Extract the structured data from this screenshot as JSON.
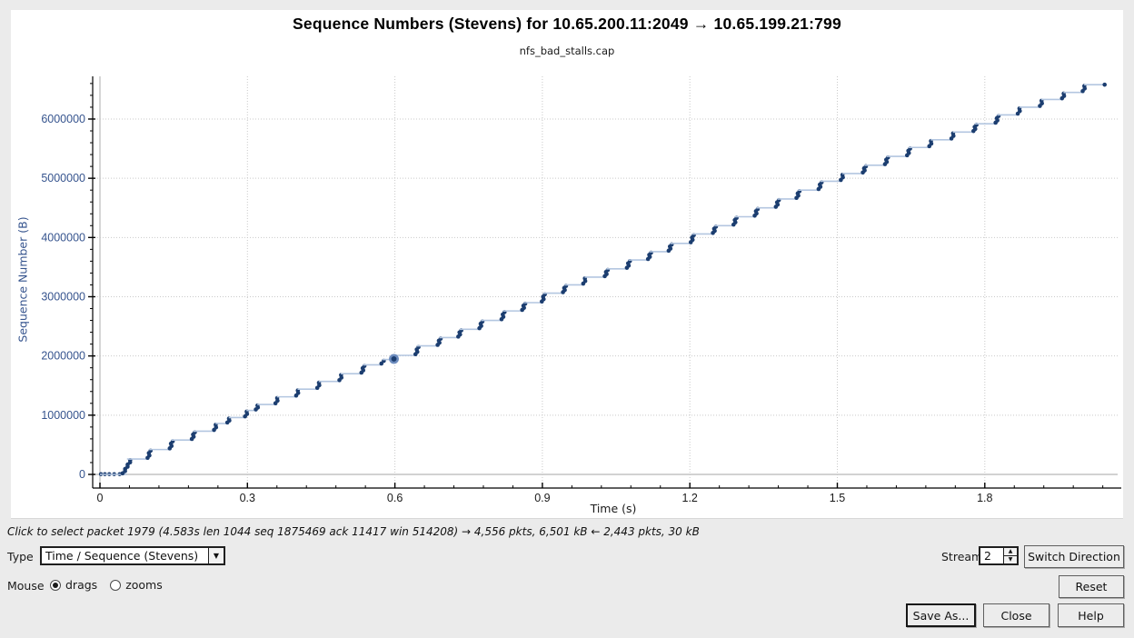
{
  "window": {
    "title": "Sequence Numbers (Stevens) for 10.65.200.11:2049 → 10.65.199.21:799",
    "subtitle": "nfs_bad_stalls.cap"
  },
  "chart_data": {
    "type": "scatter",
    "title": "Sequence Numbers (Stevens) for 10.65.200.11:2049 → 10.65.199.21:799",
    "subtitle": "nfs_bad_stalls.cap",
    "xlabel": "Time (s)",
    "ylabel": "Sequence Number (B)",
    "xlim": [
      0,
      2.07
    ],
    "ylim": [
      0,
      6720000
    ],
    "grid": "dotted at major ticks, solid gray at zero lines",
    "legend": "none",
    "xticks": [
      {
        "v": 0,
        "label": "0"
      },
      {
        "v": 0.3,
        "label": "0.3"
      },
      {
        "v": 0.6,
        "label": "0.6"
      },
      {
        "v": 0.9,
        "label": "0.9"
      },
      {
        "v": 1.2,
        "label": "1.2"
      },
      {
        "v": 1.5,
        "label": "1.5"
      },
      {
        "v": 1.8,
        "label": "1.8"
      }
    ],
    "yticks": [
      {
        "v": 0,
        "label": "0"
      },
      {
        "v": 1000000,
        "label": "1000000"
      },
      {
        "v": 2000000,
        "label": "2000000"
      },
      {
        "v": 3000000,
        "label": "3000000"
      },
      {
        "v": 4000000,
        "label": "4000000"
      },
      {
        "v": 5000000,
        "label": "5000000"
      },
      {
        "v": 6000000,
        "label": "6000000"
      }
    ],
    "x_minor_step": 0.06,
    "y_minor_step": 200000,
    "colors": {
      "points": "#1c3e70",
      "connector": "#b3c6e0",
      "grid": "#c9c9c9",
      "zero_grid": "#c4c4c4",
      "axis": "#000000",
      "y_text": "#36548e",
      "x_text": "#1a1a1a",
      "marker_ring": "#6d8cbe"
    },
    "leadin_points_t": [
      0.002,
      0.01,
      0.019,
      0.029,
      0.04
    ],
    "selected_marker": {
      "t": 0.598,
      "y": 1950000
    },
    "clusters": [
      {
        "t": 0.055,
        "y0": 0,
        "y1": 260000,
        "dt": 0.018
      },
      {
        "t": 0.1,
        "y0": 260000,
        "y1": 420000
      },
      {
        "t": 0.145,
        "y0": 420000,
        "y1": 580000
      },
      {
        "t": 0.19,
        "y0": 580000,
        "y1": 730000
      },
      {
        "t": 0.235,
        "y0": 730000,
        "y1": 860000
      },
      {
        "t": 0.262,
        "y0": 860000,
        "y1": 960000
      },
      {
        "t": 0.298,
        "y0": 960000,
        "y1": 1080000
      },
      {
        "t": 0.32,
        "y0": 1080000,
        "y1": 1180000
      },
      {
        "t": 0.36,
        "y0": 1180000,
        "y1": 1310000
      },
      {
        "t": 0.402,
        "y0": 1310000,
        "y1": 1440000
      },
      {
        "t": 0.445,
        "y0": 1440000,
        "y1": 1570000
      },
      {
        "t": 0.49,
        "y0": 1570000,
        "y1": 1700000
      },
      {
        "t": 0.535,
        "y0": 1700000,
        "y1": 1850000
      },
      {
        "t": 0.575,
        "y0": 1850000,
        "y1": 1940000
      },
      {
        "t": 0.598,
        "y0": 1940000,
        "y1": 2010000
      },
      {
        "t": 0.645,
        "y0": 2010000,
        "y1": 2170000
      },
      {
        "t": 0.69,
        "y0": 2170000,
        "y1": 2310000
      },
      {
        "t": 0.732,
        "y0": 2310000,
        "y1": 2450000
      },
      {
        "t": 0.775,
        "y0": 2450000,
        "y1": 2600000
      },
      {
        "t": 0.82,
        "y0": 2600000,
        "y1": 2760000
      },
      {
        "t": 0.862,
        "y0": 2760000,
        "y1": 2900000
      },
      {
        "t": 0.902,
        "y0": 2900000,
        "y1": 3060000
      },
      {
        "t": 0.945,
        "y0": 3060000,
        "y1": 3200000
      },
      {
        "t": 0.986,
        "y0": 3200000,
        "y1": 3330000
      },
      {
        "t": 1.03,
        "y0": 3330000,
        "y1": 3470000
      },
      {
        "t": 1.075,
        "y0": 3470000,
        "y1": 3620000
      },
      {
        "t": 1.118,
        "y0": 3620000,
        "y1": 3760000
      },
      {
        "t": 1.16,
        "y0": 3760000,
        "y1": 3900000
      },
      {
        "t": 1.205,
        "y0": 3900000,
        "y1": 4060000
      },
      {
        "t": 1.25,
        "y0": 4060000,
        "y1": 4200000
      },
      {
        "t": 1.292,
        "y0": 4200000,
        "y1": 4350000
      },
      {
        "t": 1.335,
        "y0": 4350000,
        "y1": 4500000
      },
      {
        "t": 1.378,
        "y0": 4500000,
        "y1": 4650000
      },
      {
        "t": 1.42,
        "y0": 4650000,
        "y1": 4800000
      },
      {
        "t": 1.465,
        "y0": 4800000,
        "y1": 4950000
      },
      {
        "t": 1.51,
        "y0": 4950000,
        "y1": 5080000
      },
      {
        "t": 1.555,
        "y0": 5080000,
        "y1": 5220000
      },
      {
        "t": 1.6,
        "y0": 5220000,
        "y1": 5370000
      },
      {
        "t": 1.645,
        "y0": 5370000,
        "y1": 5520000
      },
      {
        "t": 1.69,
        "y0": 5520000,
        "y1": 5650000
      },
      {
        "t": 1.735,
        "y0": 5650000,
        "y1": 5780000
      },
      {
        "t": 1.78,
        "y0": 5780000,
        "y1": 5920000
      },
      {
        "t": 1.825,
        "y0": 5920000,
        "y1": 6070000
      },
      {
        "t": 1.87,
        "y0": 6070000,
        "y1": 6200000
      },
      {
        "t": 1.915,
        "y0": 6200000,
        "y1": 6330000
      },
      {
        "t": 1.96,
        "y0": 6330000,
        "y1": 6450000
      },
      {
        "t": 2.002,
        "y0": 6450000,
        "y1": 6580000
      },
      {
        "t": 2.045,
        "y0": 6580000,
        "y1": 6580000
      }
    ]
  },
  "status_bar": {
    "text": "Click to select packet 1979 (4.583s len 1044 seq 1875469 ack 11417 win 514208) → 4,556 pkts, 6,501 kB ← 2,443 pkts, 30 kB"
  },
  "controls": {
    "type": {
      "label": "Type",
      "value": "Time / Sequence (Stevens)"
    },
    "mouse": {
      "label": "Mouse",
      "options": [
        {
          "label": "drags",
          "selected": true
        },
        {
          "label": "zooms",
          "selected": false
        }
      ]
    },
    "stream": {
      "label": "Stream",
      "value": "2"
    },
    "buttons": {
      "switch_direction": "Switch Direction",
      "reset": "Reset",
      "save_as": "Save As...",
      "close": "Close",
      "help": "Help"
    }
  },
  "icons": {
    "dropdown_arrow": "▼",
    "spin_up": "▲",
    "spin_down": "▼"
  }
}
